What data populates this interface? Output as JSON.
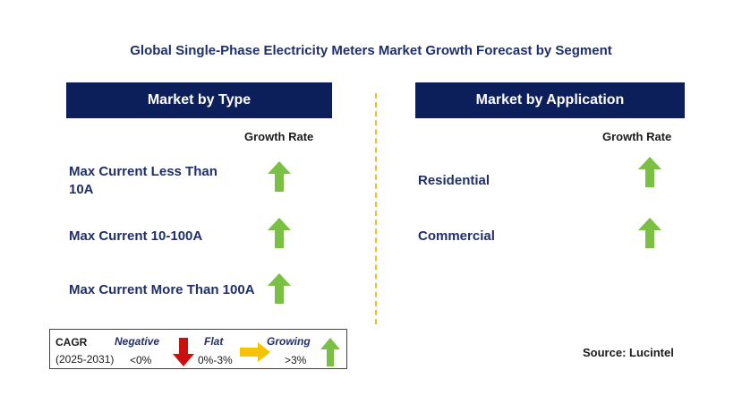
{
  "title": "Global Single-Phase Electricity Meters Market Growth Forecast by Segment",
  "left_panel": {
    "header": "Market by Type",
    "growth_label": "Growth Rate",
    "items": [
      {
        "line1": "Max Current Less Than",
        "line2": "10A",
        "trend": "growing"
      },
      {
        "line1": "Max Current 10-100A",
        "line2": "",
        "trend": "growing"
      },
      {
        "line1": "Max Current More Than 100A",
        "line2": "",
        "trend": "growing"
      }
    ]
  },
  "right_panel": {
    "header": "Market by Application",
    "growth_label": "Growth Rate",
    "items": [
      {
        "label": "Residential",
        "trend": "growing"
      },
      {
        "label": "Commercial",
        "trend": "growing"
      }
    ]
  },
  "legend": {
    "cagr": "CAGR",
    "period": "(2025-2031)",
    "negative": {
      "label": "Negative",
      "range": "<0%"
    },
    "flat": {
      "label": "Flat",
      "range": "0%-3%"
    },
    "growing": {
      "label": "Growing",
      "range": ">3%"
    }
  },
  "source": "Source: Lucintel",
  "colors": {
    "header_bg": "#0c1f5b",
    "title": "#1f2f6b",
    "green_arrow": "#7ac143",
    "red_arrow": "#cc1010",
    "yellow_arrow": "#f5c400",
    "divider": "#f0c020"
  }
}
